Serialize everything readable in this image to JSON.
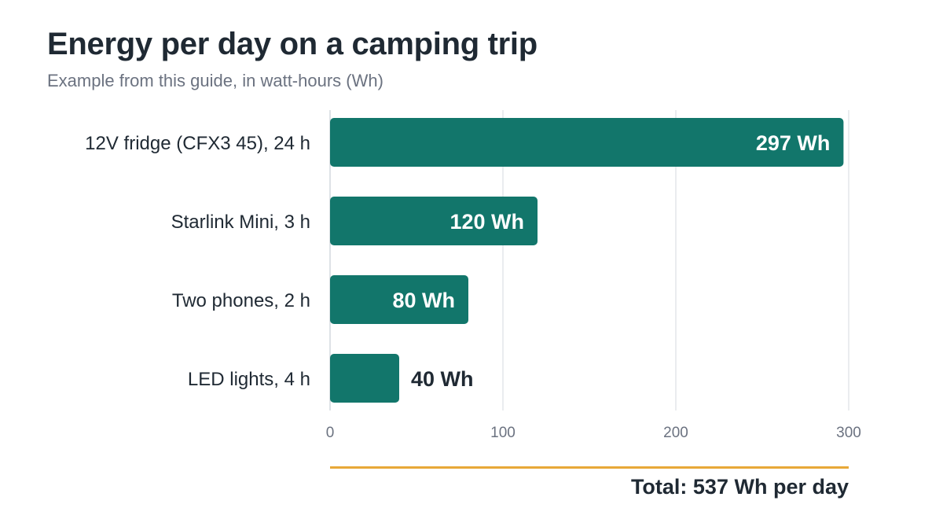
{
  "chart_data": {
    "type": "bar",
    "orientation": "horizontal",
    "title": "Energy per day on a camping trip",
    "subtitle": "Example from this guide, in watt-hours (Wh)",
    "categories": [
      "12V fridge (CFX3 45), 24 h",
      "Starlink Mini, 3 h",
      "Two phones, 2 h",
      "LED lights, 4 h"
    ],
    "values": [
      297,
      120,
      80,
      40
    ],
    "value_labels": [
      "297 Wh",
      "120 Wh",
      "80 Wh",
      "40 Wh"
    ],
    "xlim": [
      0,
      300
    ],
    "xticks": [
      0,
      100,
      200,
      300
    ],
    "xtick_labels": [
      "0",
      "100",
      "200",
      "300"
    ],
    "grid": true,
    "bar_color": "#12766b",
    "total": "Total: 537 Wh per day",
    "total_rule_color": "#e8a838"
  }
}
